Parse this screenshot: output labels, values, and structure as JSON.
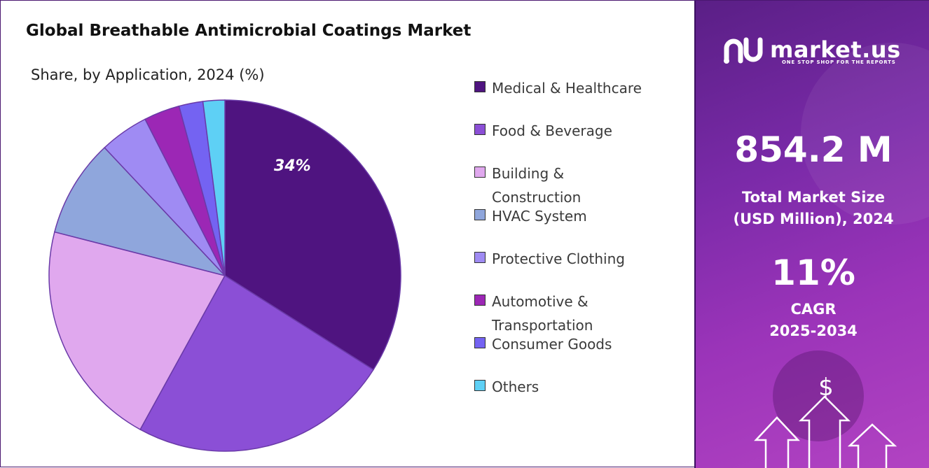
{
  "title": "Global Breathable Antimicrobial Coatings Market",
  "chart_data": {
    "type": "pie",
    "subtitle": "Share, by Application, 2024 (%)",
    "categories": [
      "Medical & Healthcare",
      "Food & Beverage",
      "Building & Construction",
      "HVAC System",
      "Protective Clothing",
      "Automotive & Transportation",
      "Consumer Goods",
      "Others"
    ],
    "values": [
      34,
      24,
      21,
      9,
      4.5,
      3.3,
      2.2,
      2.0
    ],
    "colors": [
      "#4f1480",
      "#8b4fd6",
      "#e0a8ee",
      "#8fa6dc",
      "#9f8bf3",
      "#9c27b5",
      "#7463f2",
      "#5ed0f5"
    ],
    "data_labels": [
      "34%",
      "",
      "",
      "",
      "",
      "",
      "",
      ""
    ],
    "legend_position": "right"
  },
  "brand": {
    "name": "market.us",
    "tagline": "ONE STOP SHOP FOR THE REPORTS",
    "logo_icon": "market-us-logo-icon"
  },
  "stats": {
    "market_size_value": "854.2 M",
    "market_size_label_line1": "Total Market Size",
    "market_size_label_line2": "(USD Million), 2024",
    "cagr_value": "11%",
    "cagr_label_line1": "CAGR",
    "cagr_label_line2": "2025-2034"
  },
  "decor": {
    "dollar_symbol": "$"
  }
}
